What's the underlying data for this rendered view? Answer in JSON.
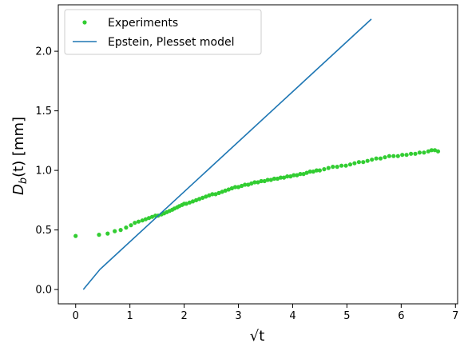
{
  "chart_data": {
    "type": "line",
    "xlabel": "√t",
    "ylabel_main": "D",
    "ylabel_sub": "b",
    "ylabel_rest": "(t) [mm]",
    "xlim": [
      -0.32,
      7.04
    ],
    "ylim": [
      -0.12,
      2.39
    ],
    "xticks": [
      0,
      1,
      2,
      3,
      4,
      5,
      6,
      7
    ],
    "yticks": [
      0.0,
      0.5,
      1.0,
      1.5,
      2.0
    ],
    "ytick_labels": [
      "0.0",
      "0.5",
      "1.0",
      "1.5",
      "2.0"
    ],
    "grid": false,
    "legend_position": "upper-left",
    "series": [
      {
        "name": "Experiments",
        "style": "markers",
        "color": "#32cd32",
        "x": [
          0.0,
          0.43,
          0.59,
          0.72,
          0.83,
          0.93,
          1.02,
          1.09,
          1.16,
          1.23,
          1.29,
          1.35,
          1.41,
          1.47,
          1.52,
          1.58,
          1.63,
          1.68,
          1.73,
          1.78,
          1.82,
          1.87,
          1.91,
          1.96,
          2.0,
          2.04,
          2.1,
          2.16,
          2.22,
          2.28,
          2.34,
          2.4,
          2.46,
          2.52,
          2.58,
          2.64,
          2.7,
          2.76,
          2.82,
          2.88,
          2.94,
          3.0,
          3.06,
          3.12,
          3.18,
          3.24,
          3.3,
          3.36,
          3.42,
          3.48,
          3.54,
          3.6,
          3.66,
          3.72,
          3.78,
          3.84,
          3.9,
          3.96,
          4.02,
          4.08,
          4.14,
          4.2,
          4.26,
          4.32,
          4.38,
          4.44,
          4.5,
          4.58,
          4.66,
          4.74,
          4.82,
          4.9,
          4.98,
          5.06,
          5.14,
          5.22,
          5.3,
          5.38,
          5.46,
          5.54,
          5.62,
          5.7,
          5.78,
          5.86,
          5.94,
          6.02,
          6.1,
          6.18,
          6.26,
          6.34,
          6.42,
          6.5,
          6.56,
          6.62,
          6.68
        ],
        "y": [
          0.45,
          0.46,
          0.47,
          0.49,
          0.5,
          0.52,
          0.54,
          0.56,
          0.57,
          0.58,
          0.59,
          0.6,
          0.61,
          0.62,
          0.62,
          0.63,
          0.64,
          0.65,
          0.66,
          0.67,
          0.68,
          0.69,
          0.7,
          0.71,
          0.72,
          0.72,
          0.73,
          0.74,
          0.75,
          0.76,
          0.77,
          0.78,
          0.79,
          0.8,
          0.8,
          0.81,
          0.82,
          0.83,
          0.84,
          0.85,
          0.86,
          0.86,
          0.87,
          0.88,
          0.88,
          0.89,
          0.9,
          0.9,
          0.91,
          0.91,
          0.92,
          0.92,
          0.93,
          0.93,
          0.94,
          0.94,
          0.95,
          0.95,
          0.96,
          0.96,
          0.97,
          0.97,
          0.98,
          0.99,
          0.99,
          1.0,
          1.0,
          1.01,
          1.02,
          1.03,
          1.03,
          1.04,
          1.04,
          1.05,
          1.06,
          1.07,
          1.07,
          1.08,
          1.09,
          1.1,
          1.1,
          1.11,
          1.12,
          1.12,
          1.12,
          1.13,
          1.13,
          1.14,
          1.14,
          1.15,
          1.15,
          1.16,
          1.17,
          1.17,
          1.16
        ]
      },
      {
        "name": "Epstein, Plesset model",
        "style": "line",
        "color": "#1f77b4",
        "x": [
          0.14,
          0.45,
          5.45
        ],
        "y": [
          0.0,
          0.17,
          2.27
        ]
      }
    ]
  }
}
